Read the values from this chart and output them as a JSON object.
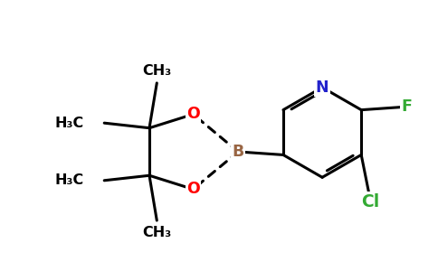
{
  "background_color": "#ffffff",
  "bond_color": "#000000",
  "bond_width": 2.2,
  "atom_labels": {
    "N": {
      "color": "#2222cc"
    },
    "O": {
      "color": "#ff0000"
    },
    "B": {
      "color": "#996644"
    },
    "F": {
      "color": "#33aa33"
    },
    "Cl": {
      "color": "#33aa33"
    }
  },
  "figsize": [
    4.84,
    3.0
  ],
  "dpi": 100,
  "xlim": [
    -3.8,
    3.2
  ],
  "ylim": [
    -2.0,
    2.0
  ]
}
